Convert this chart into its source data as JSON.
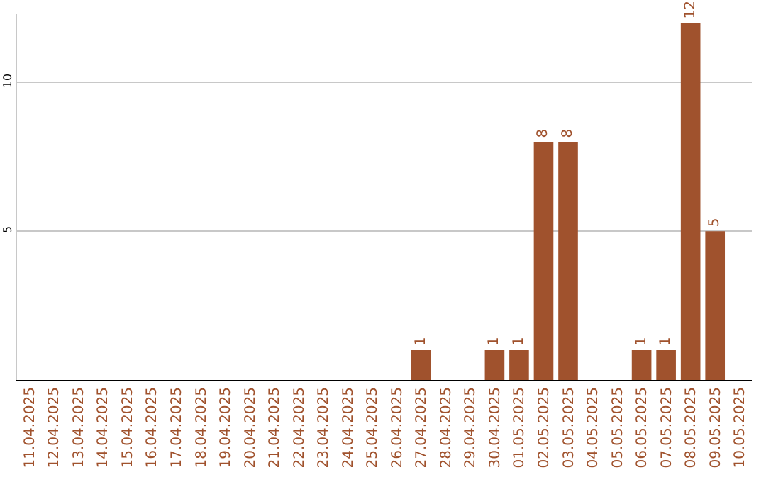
{
  "chart_data": {
    "type": "bar",
    "categories": [
      "11.04.2025",
      "12.04.2025",
      "13.04.2025",
      "14.04.2025",
      "15.04.2025",
      "16.04.2025",
      "17.04.2025",
      "18.04.2025",
      "19.04.2025",
      "20.04.2025",
      "21.04.2025",
      "22.04.2025",
      "23.04.2025",
      "24.04.2025",
      "25.04.2025",
      "26.04.2025",
      "27.04.2025",
      "28.04.2025",
      "29.04.2025",
      "30.04.2025",
      "01.05.2025",
      "02.05.2025",
      "03.05.2025",
      "04.05.2025",
      "05.05.2025",
      "06.05.2025",
      "07.05.2025",
      "08.05.2025",
      "09.05.2025",
      "10.05.2025"
    ],
    "values": [
      0,
      0,
      0,
      0,
      0,
      0,
      0,
      0,
      0,
      0,
      0,
      0,
      0,
      0,
      0,
      0,
      1,
      0,
      0,
      1,
      1,
      8,
      8,
      0,
      0,
      1,
      1,
      12,
      5,
      0
    ],
    "value_labels": [
      null,
      null,
      null,
      null,
      null,
      null,
      null,
      null,
      null,
      null,
      null,
      null,
      null,
      null,
      null,
      null,
      "1",
      null,
      null,
      "1",
      "1",
      "8",
      "8",
      null,
      null,
      "1",
      "1",
      "12",
      "5",
      null
    ],
    "color": "#a0522d",
    "ylim": [
      0,
      12.3
    ],
    "yticks": [
      5,
      10
    ],
    "grid": "y"
  }
}
